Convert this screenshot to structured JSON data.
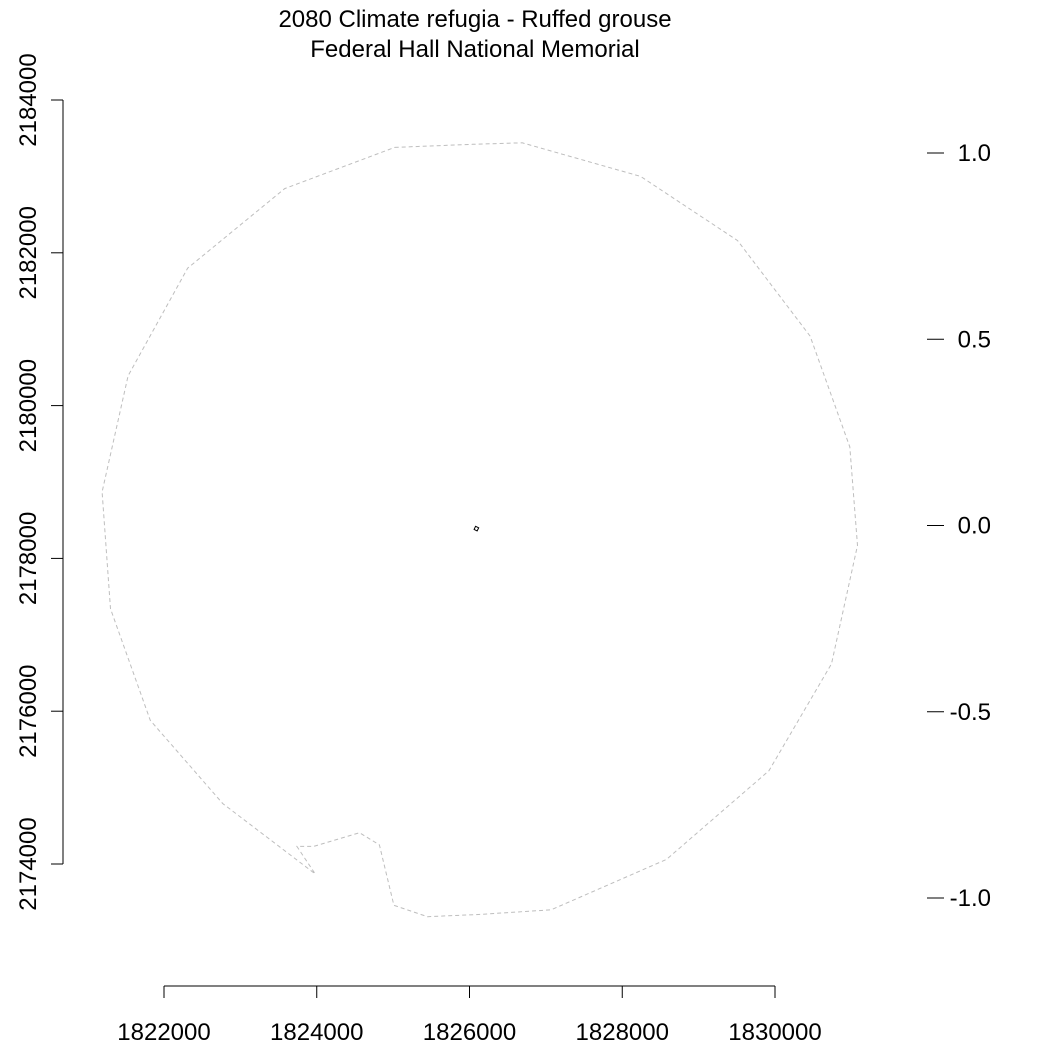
{
  "chart_data": {
    "type": "map",
    "title": "2080 Climate refugia - Ruffed grouse",
    "subtitle": "Federal Hall National Memorial",
    "xlabel": "",
    "ylabel": "",
    "x_axis": {
      "ticks": [
        1822000,
        1824000,
        1826000,
        1828000,
        1830000
      ],
      "tick_labels": [
        "1822000",
        "1824000",
        "1826000",
        "1828000",
        "1830000"
      ]
    },
    "y_axis_left": {
      "ticks": [
        2174000,
        2176000,
        2178000,
        2180000,
        2182000,
        2184000
      ],
      "tick_labels": [
        "2174000",
        "2176000",
        "2178000",
        "2180000",
        "2182000",
        "2184000"
      ]
    },
    "y_axis_right": {
      "ticks": [
        -1.0,
        -0.5,
        0.0,
        0.5,
        1.0
      ],
      "tick_labels": [
        "-1.0",
        "-0.5",
        "0.0",
        "0.5",
        "1.0"
      ]
    },
    "buffer_boundary": {
      "style": "dashed",
      "color": "#bebebe",
      "points": [
        [
          1825020,
          2183380
        ],
        [
          1826040,
          2183420
        ],
        [
          1826690,
          2183440
        ],
        [
          1828240,
          2183000
        ],
        [
          1829510,
          2182160
        ],
        [
          1830460,
          2180910
        ],
        [
          1830980,
          2179460
        ],
        [
          1831080,
          2178170
        ],
        [
          1830740,
          2176620
        ],
        [
          1829920,
          2175220
        ],
        [
          1828580,
          2174060
        ],
        [
          1827070,
          2173400
        ],
        [
          1826140,
          2173340
        ],
        [
          1825450,
          2173310
        ],
        [
          1825010,
          2173460
        ],
        [
          1824820,
          2174250
        ],
        [
          1824560,
          2174410
        ],
        [
          1823960,
          2174230
        ],
        [
          1823740,
          2174230
        ],
        [
          1823980,
          2173870
        ],
        [
          1822770,
          2174790
        ],
        [
          1821820,
          2175880
        ],
        [
          1821300,
          2177340
        ],
        [
          1821190,
          2178870
        ],
        [
          1821530,
          2180390
        ],
        [
          1822310,
          2181800
        ],
        [
          1823580,
          2182840
        ]
      ]
    },
    "park_polygon": {
      "color": "#000000",
      "points": [
        [
          1826080,
          2178420
        ],
        [
          1826120,
          2178400
        ],
        [
          1826100,
          2178360
        ],
        [
          1826060,
          2178380
        ]
      ]
    }
  }
}
